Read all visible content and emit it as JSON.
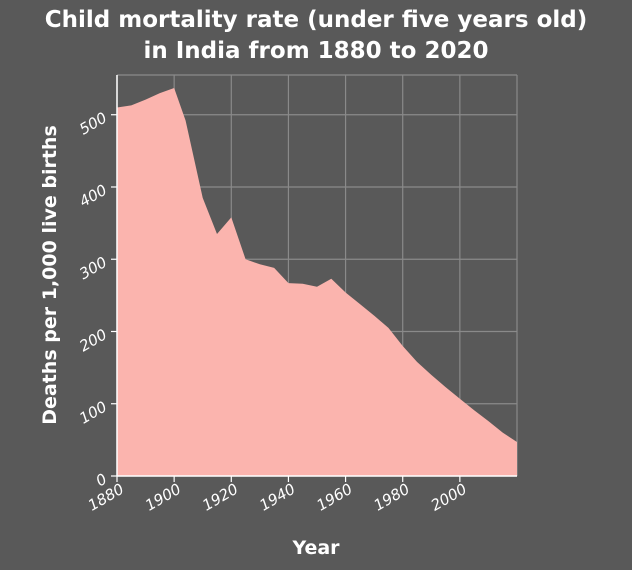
{
  "chart_data": {
    "type": "area",
    "title_lines": [
      "Child mortality rate (under five years old)",
      "in India from 1880 to 2020"
    ],
    "xlabel": "Year",
    "ylabel": "Deaths per 1,000 live births",
    "xlim": [
      1880,
      2020
    ],
    "ylim": [
      0,
      555
    ],
    "x_ticks": [
      1880,
      1900,
      1920,
      1940,
      1960,
      1980,
      2000
    ],
    "x_tick_labels": [
      "1880",
      "1900",
      "1920",
      "1940",
      "1960",
      "1980",
      "2000"
    ],
    "y_ticks": [
      0,
      100,
      200,
      300,
      400,
      500
    ],
    "y_tick_labels": [
      "0",
      "100",
      "200",
      "300",
      "400",
      "500"
    ],
    "grid": true,
    "series": [
      {
        "name": "Child mortality rate",
        "color": "#fbb4ae",
        "x": [
          1880,
          1885,
          1890,
          1895,
          1900,
          1904,
          1910,
          1915,
          1920,
          1925,
          1930,
          1935,
          1940,
          1945,
          1950,
          1955,
          1960,
          1965,
          1970,
          1975,
          1980,
          1985,
          1990,
          1995,
          2000,
          2005,
          2010,
          2015,
          2020
        ],
        "y": [
          510,
          513,
          521,
          530,
          537,
          492,
          385,
          335,
          358,
          300,
          293,
          288,
          267,
          266,
          262,
          273,
          254,
          238,
          222,
          205,
          180,
          158,
          140,
          123,
          107,
          91,
          76,
          60,
          47
        ]
      }
    ]
  }
}
